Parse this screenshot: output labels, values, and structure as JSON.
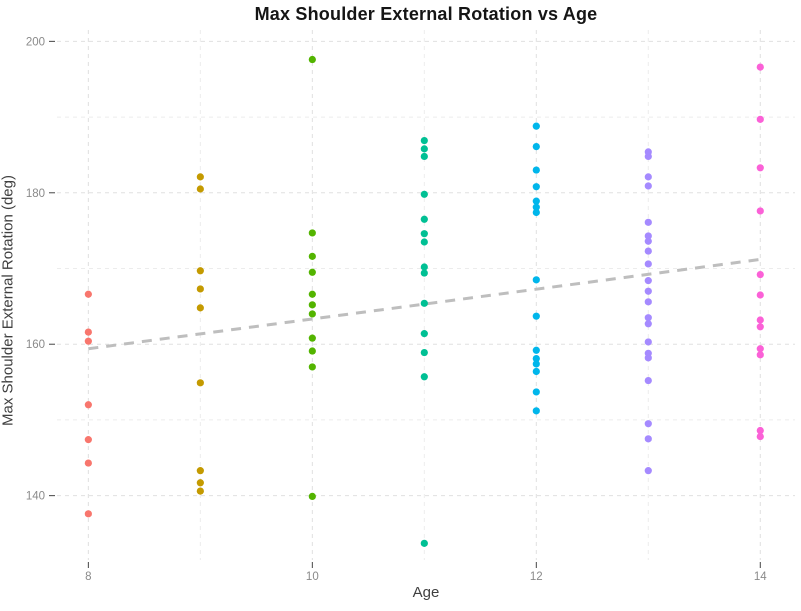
{
  "chart_data": {
    "type": "scatter",
    "title": "Max Shoulder External Rotation vs Age",
    "xlabel": "Age",
    "ylabel": "Max Shoulder External Rotation (deg)",
    "xlim": [
      7.72,
      14.31
    ],
    "ylim": [
      131.5,
      201.5
    ],
    "x_major_ticks": [
      8,
      10,
      12,
      14
    ],
    "x_minor_ticks": [
      9,
      11,
      13
    ],
    "y_major_ticks": [
      140,
      160,
      180,
      200
    ],
    "y_minor_ticks": [
      150,
      170,
      190
    ],
    "grid": true,
    "legend": "none",
    "series": [
      {
        "name": "age-8",
        "color": "#F8766D",
        "x": 8,
        "values": [
          166.6,
          161.6,
          160.4,
          152.0,
          147.4,
          144.3,
          137.6
        ]
      },
      {
        "name": "age-9",
        "color": "#C49A00",
        "x": 9,
        "values": [
          182.1,
          180.5,
          169.7,
          167.3,
          164.8,
          154.9,
          143.3,
          141.7,
          140.6
        ]
      },
      {
        "name": "age-10",
        "color": "#53B400",
        "x": 10,
        "values": [
          197.6,
          174.7,
          171.6,
          169.5,
          166.6,
          165.2,
          164.0,
          160.8,
          159.1,
          157.0,
          139.9
        ]
      },
      {
        "name": "age-11",
        "color": "#00C094",
        "x": 11,
        "values": [
          186.9,
          185.8,
          184.8,
          179.8,
          176.5,
          174.6,
          173.5,
          170.2,
          169.4,
          165.4,
          161.4,
          158.9,
          155.7,
          133.7
        ]
      },
      {
        "name": "age-12",
        "color": "#00B6EB",
        "x": 12,
        "values": [
          188.8,
          186.1,
          183.0,
          180.8,
          178.9,
          178.1,
          177.4,
          168.5,
          163.7,
          159.2,
          158.1,
          157.4,
          156.4,
          153.7,
          151.2
        ]
      },
      {
        "name": "age-13",
        "color": "#A58AFF",
        "x": 13,
        "values": [
          185.4,
          184.8,
          182.1,
          180.9,
          176.1,
          174.3,
          173.6,
          172.3,
          170.6,
          168.4,
          167.0,
          165.6,
          163.5,
          162.7,
          160.3,
          158.8,
          158.2,
          155.2,
          149.5,
          147.5,
          143.3
        ]
      },
      {
        "name": "age-14",
        "color": "#FB61D7",
        "x": 14,
        "values": [
          196.6,
          189.7,
          183.3,
          177.6,
          169.2,
          166.5,
          163.2,
          162.3,
          159.4,
          158.6,
          148.6,
          147.8
        ]
      }
    ],
    "trend_line": {
      "x1": 8,
      "y1": 159.4,
      "x2": 14,
      "y2": 171.2,
      "color": "#BEBEBE",
      "style": "dashed"
    }
  }
}
